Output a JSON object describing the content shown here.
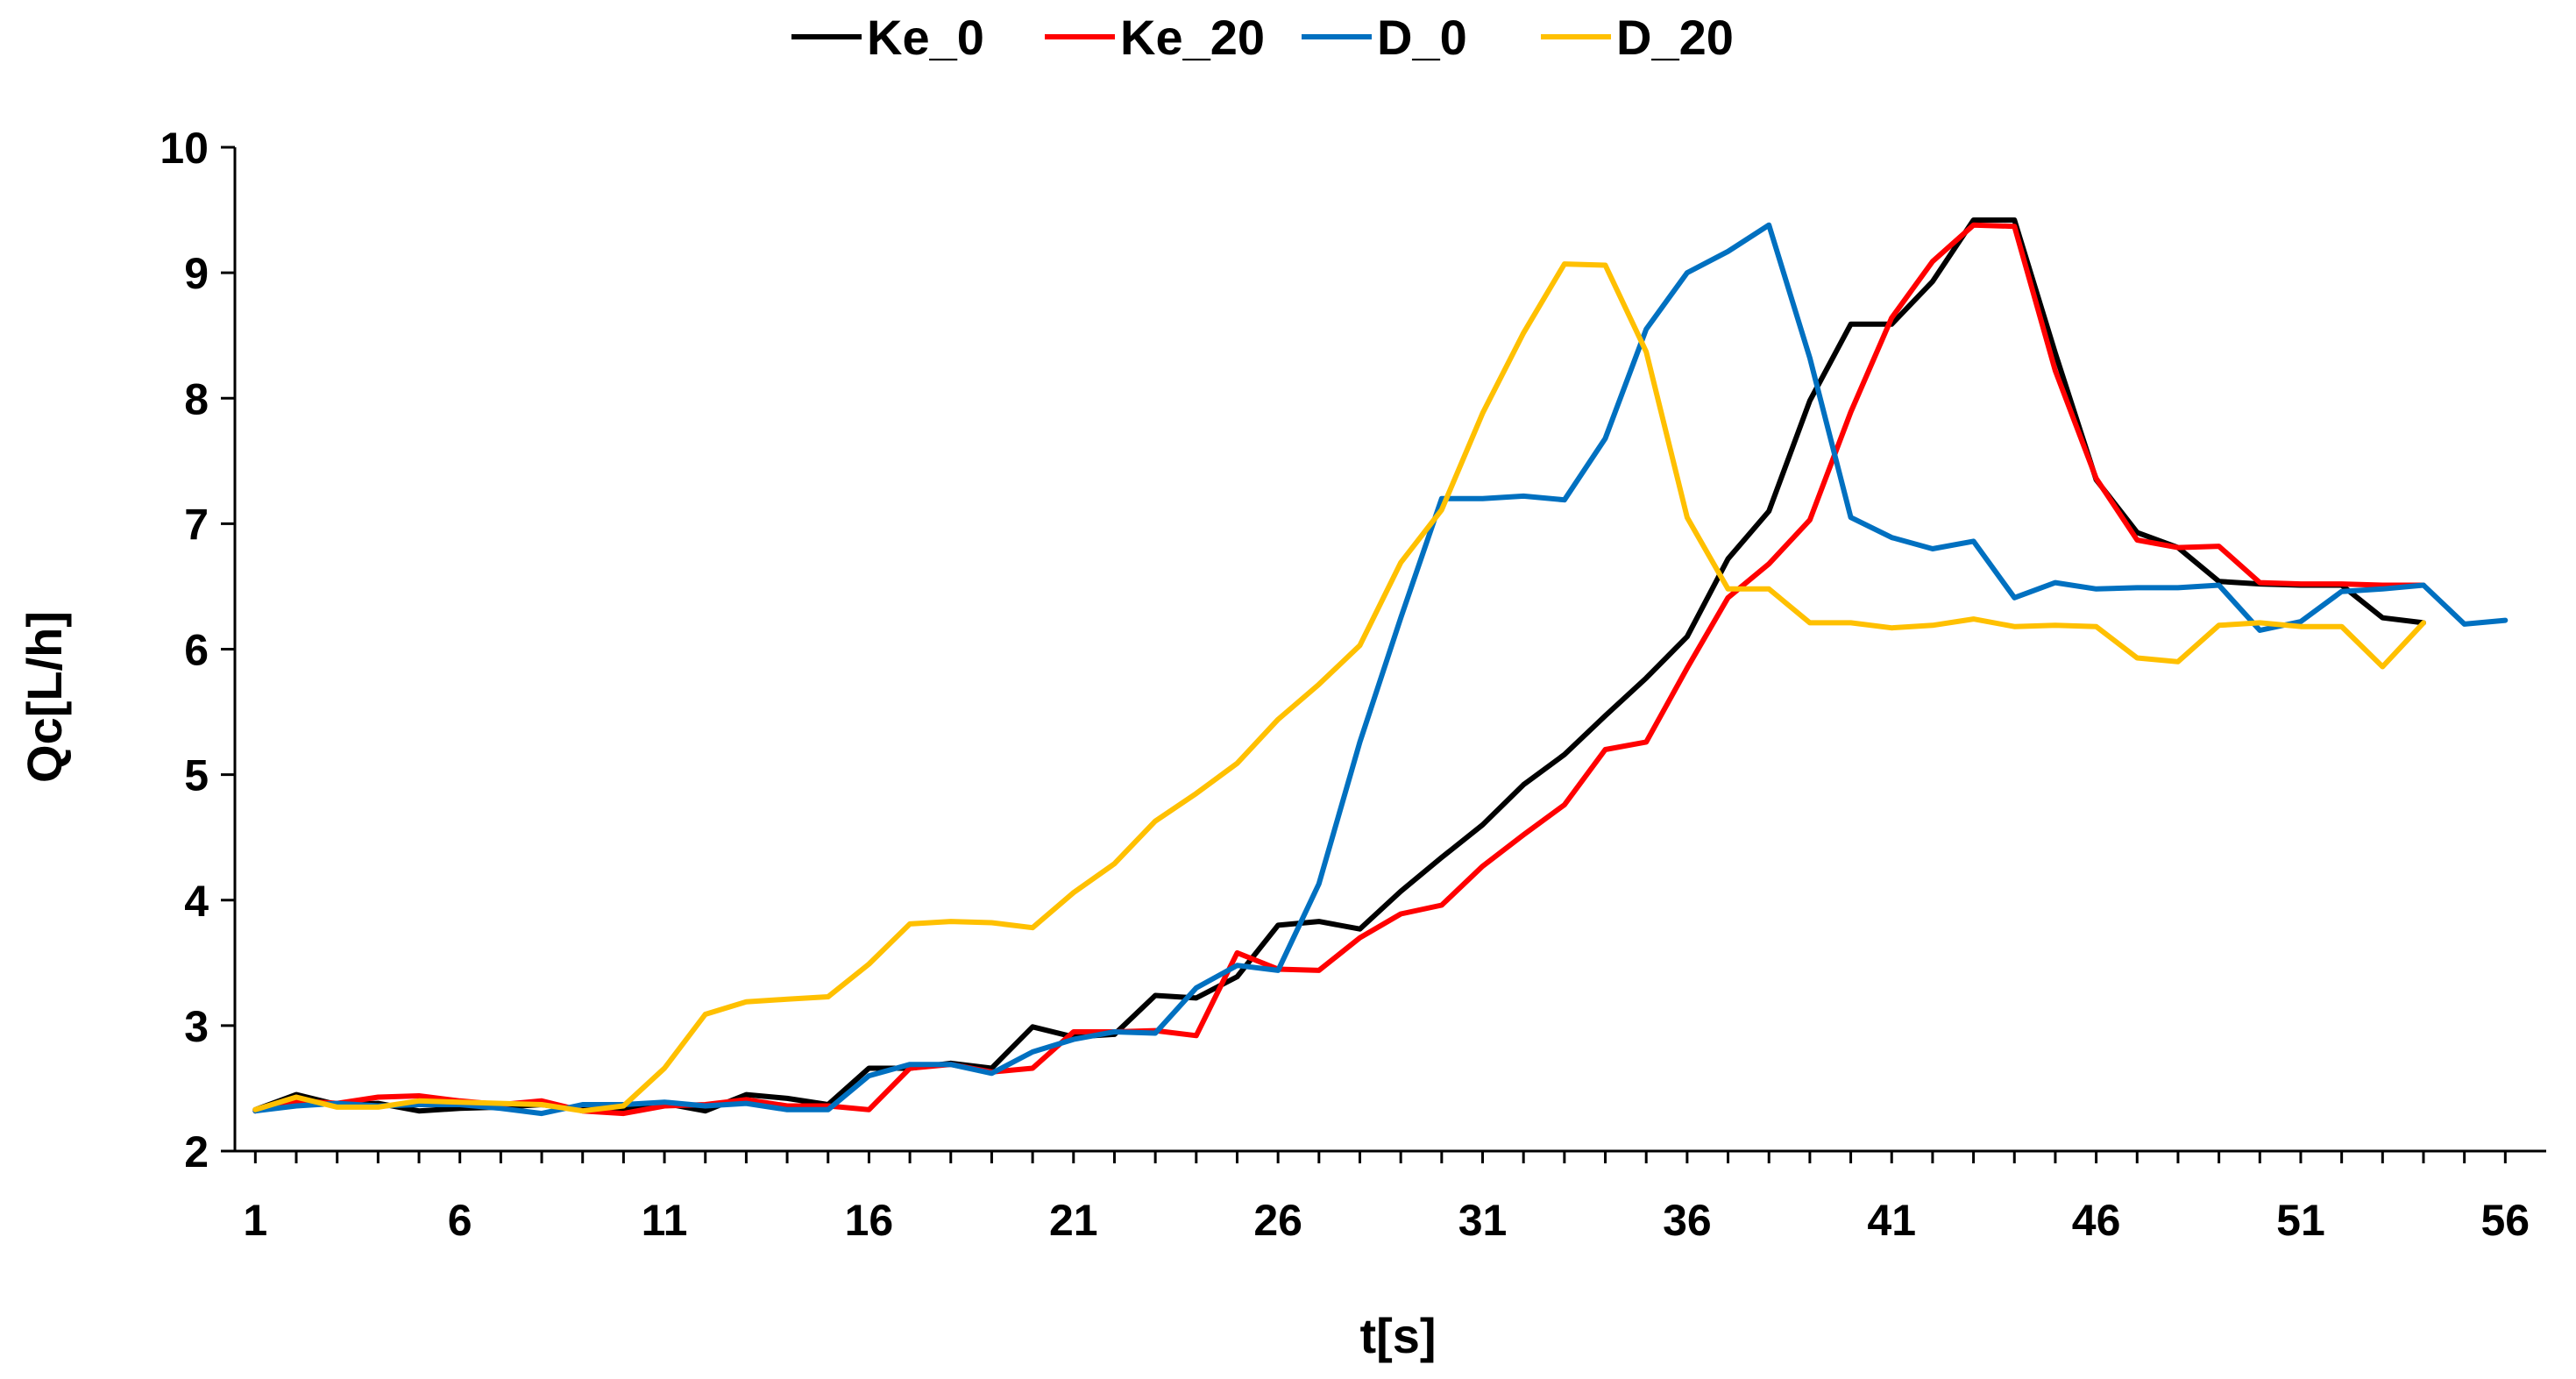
{
  "chart_data": {
    "type": "line",
    "title": "",
    "xlabel": "t[s]",
    "ylabel": "Qc[L/h]",
    "xlim": [
      0.5,
      57.0
    ],
    "ylim": [
      2,
      10
    ],
    "x_ticks": [
      1,
      6,
      11,
      16,
      21,
      26,
      31,
      36,
      41,
      46,
      51,
      56
    ],
    "y_ticks": [
      2,
      3,
      4,
      5,
      6,
      7,
      8,
      9,
      10
    ],
    "grid": false,
    "legend": "top",
    "series": [
      {
        "name": "Ke_0",
        "color": "#000000",
        "x": [
          1,
          2,
          3,
          4,
          5,
          6,
          7,
          8,
          9,
          10,
          11,
          12,
          13,
          14,
          15,
          16,
          17,
          18,
          19,
          20,
          21,
          22,
          23,
          24,
          25,
          26,
          27,
          28,
          29,
          30,
          31,
          32,
          33,
          34,
          35,
          36,
          37,
          38,
          39,
          40,
          41,
          42,
          43,
          44,
          45,
          46,
          47,
          48,
          49,
          50,
          51,
          52,
          53,
          54
        ],
        "values": [
          2.33,
          2.45,
          2.37,
          2.38,
          2.32,
          2.34,
          2.35,
          2.37,
          2.33,
          2.33,
          2.38,
          2.32,
          2.45,
          2.42,
          2.37,
          2.66,
          2.66,
          2.7,
          2.66,
          2.99,
          2.91,
          2.93,
          3.24,
          3.22,
          3.39,
          3.8,
          3.83,
          3.77,
          4.07,
          4.34,
          4.6,
          4.92,
          5.16,
          5.47,
          5.77,
          6.1,
          6.72,
          7.1,
          7.98,
          8.59,
          8.59,
          8.93,
          9.42,
          9.42,
          8.36,
          7.35,
          6.93,
          6.81,
          6.54,
          6.52,
          6.51,
          6.51,
          6.25,
          6.21
        ]
      },
      {
        "name": "Ke_20",
        "color": "#ff0000",
        "x": [
          1,
          2,
          3,
          4,
          5,
          6,
          7,
          8,
          9,
          10,
          11,
          12,
          13,
          14,
          15,
          16,
          17,
          18,
          19,
          20,
          21,
          22,
          23,
          24,
          25,
          26,
          27,
          28,
          29,
          30,
          31,
          32,
          33,
          34,
          35,
          36,
          37,
          38,
          39,
          40,
          41,
          42,
          43,
          44,
          45,
          46,
          47,
          48,
          49,
          50,
          51,
          52,
          53,
          54
        ],
        "values": [
          2.32,
          2.4,
          2.38,
          2.43,
          2.44,
          2.4,
          2.37,
          2.4,
          2.32,
          2.3,
          2.36,
          2.37,
          2.41,
          2.36,
          2.36,
          2.33,
          2.66,
          2.69,
          2.63,
          2.66,
          2.95,
          2.95,
          2.96,
          2.92,
          3.58,
          3.45,
          3.44,
          3.7,
          3.89,
          3.96,
          4.27,
          4.52,
          4.76,
          5.2,
          5.26,
          5.85,
          6.41,
          6.68,
          7.03,
          7.89,
          8.64,
          9.09,
          9.38,
          9.37,
          8.22,
          7.36,
          6.87,
          6.81,
          6.82,
          6.53,
          6.52,
          6.52,
          6.51,
          6.51
        ]
      },
      {
        "name": "D_0",
        "color": "#0070c0",
        "x": [
          1,
          2,
          3,
          4,
          5,
          6,
          7,
          8,
          9,
          10,
          11,
          12,
          13,
          14,
          15,
          16,
          17,
          18,
          19,
          20,
          21,
          22,
          23,
          24,
          25,
          26,
          27,
          28,
          29,
          30,
          31,
          32,
          33,
          34,
          35,
          36,
          37,
          38,
          39,
          40,
          41,
          42,
          43,
          44,
          45,
          46,
          47,
          48,
          49,
          50,
          51,
          52,
          53,
          54,
          55,
          56
        ],
        "values": [
          2.32,
          2.36,
          2.38,
          2.36,
          2.37,
          2.37,
          2.34,
          2.3,
          2.37,
          2.37,
          2.39,
          2.36,
          2.38,
          2.33,
          2.33,
          2.6,
          2.69,
          2.69,
          2.62,
          2.79,
          2.89,
          2.95,
          2.94,
          3.3,
          3.48,
          3.44,
          4.13,
          5.26,
          6.25,
          7.2,
          7.2,
          7.22,
          7.19,
          7.68,
          8.55,
          9.0,
          9.17,
          9.38,
          8.32,
          7.05,
          6.89,
          6.8,
          6.86,
          6.41,
          6.53,
          6.48,
          6.49,
          6.49,
          6.51,
          6.15,
          6.22,
          6.46,
          6.48,
          6.51,
          6.2,
          6.23
        ]
      },
      {
        "name": "D_20",
        "color": "#ffc000",
        "x": [
          1,
          2,
          3,
          4,
          5,
          6,
          7,
          8,
          9,
          10,
          11,
          12,
          13,
          14,
          15,
          16,
          17,
          18,
          19,
          20,
          21,
          22,
          23,
          24,
          25,
          26,
          27,
          28,
          29,
          30,
          31,
          32,
          33,
          34,
          35,
          36,
          37,
          38,
          39,
          40,
          41,
          42,
          43,
          44,
          45,
          46,
          47,
          48,
          49,
          50,
          51,
          52,
          53,
          54
        ],
        "values": [
          2.33,
          2.43,
          2.35,
          2.35,
          2.4,
          2.39,
          2.38,
          2.37,
          2.32,
          2.36,
          2.66,
          3.09,
          3.19,
          3.21,
          3.23,
          3.49,
          3.81,
          3.83,
          3.82,
          3.78,
          4.06,
          4.29,
          4.63,
          4.85,
          5.09,
          5.44,
          5.72,
          6.03,
          6.69,
          7.11,
          7.88,
          8.52,
          9.07,
          9.06,
          8.37,
          7.05,
          6.48,
          6.48,
          6.21,
          6.21,
          6.17,
          6.19,
          6.24,
          6.18,
          6.19,
          6.18,
          5.93,
          5.9,
          6.19,
          6.21,
          6.18,
          6.18,
          5.86,
          6.21
        ]
      }
    ]
  }
}
